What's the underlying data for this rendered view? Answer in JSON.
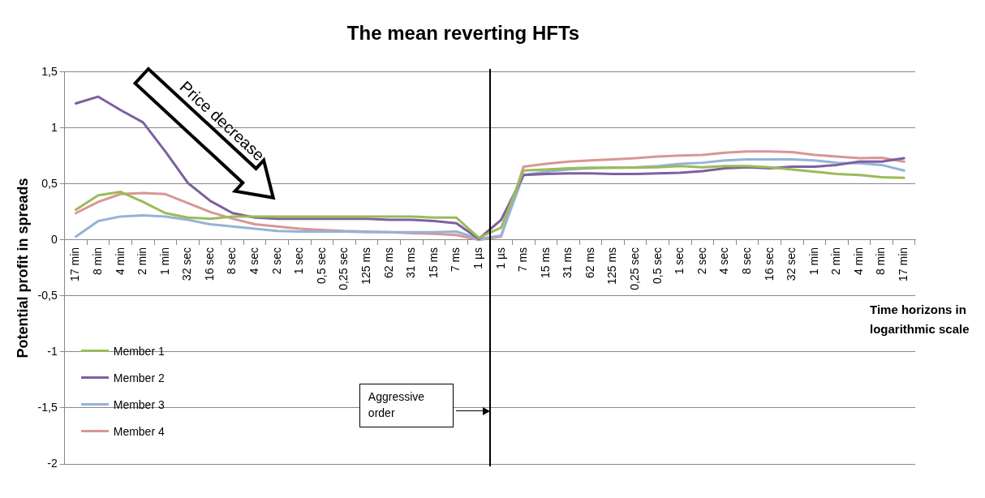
{
  "chart_data": {
    "type": "line",
    "title": "The mean reverting HFTs",
    "ylabel": "Potential profit in spreads",
    "xlabel": "Time horizons in logarithmic scale",
    "categories": [
      "17 min",
      "8 min",
      "4 min",
      "2 min",
      "1 min",
      "32 sec",
      "16 sec",
      "8 sec",
      "4 sec",
      "2 sec",
      "1 sec",
      "0,5 sec",
      "0,25 sec",
      "125 ms",
      "62 ms",
      "31 ms",
      "15 ms",
      "7 ms",
      "1 µs",
      "1 µs",
      "7 ms",
      "15 ms",
      "31 ms",
      "62 ms",
      "125 ms",
      "0,25 sec",
      "0,5 sec",
      "1 sec",
      "2 sec",
      "4 sec",
      "8 sec",
      "16 sec",
      "32 sec",
      "1 min",
      "2 min",
      "4 min",
      "8 min",
      "17 min"
    ],
    "series": [
      {
        "name": "Member 1",
        "color": "#9bbb59",
        "values": [
          0.27,
          0.4,
          0.43,
          0.34,
          0.24,
          0.2,
          0.19,
          0.21,
          0.21,
          0.21,
          0.21,
          0.21,
          0.21,
          0.21,
          0.21,
          0.21,
          0.2,
          0.2,
          0.02,
          0.11,
          0.62,
          0.63,
          0.64,
          0.645,
          0.645,
          0.645,
          0.65,
          0.66,
          0.65,
          0.66,
          0.66,
          0.65,
          0.63,
          0.61,
          0.59,
          0.58,
          0.56,
          0.555
        ]
      },
      {
        "name": "Member 2",
        "color": "#7d60a0",
        "values": [
          1.22,
          1.28,
          1.16,
          1.05,
          0.79,
          0.51,
          0.35,
          0.24,
          0.2,
          0.19,
          0.19,
          0.19,
          0.19,
          0.19,
          0.18,
          0.18,
          0.17,
          0.15,
          0.01,
          0.18,
          0.58,
          0.59,
          0.595,
          0.595,
          0.59,
          0.59,
          0.595,
          0.6,
          0.615,
          0.64,
          0.65,
          0.64,
          0.655,
          0.655,
          0.67,
          0.7,
          0.7,
          0.73
        ]
      },
      {
        "name": "Member 3",
        "color": "#95b3d7",
        "values": [
          0.03,
          0.17,
          0.21,
          0.22,
          0.21,
          0.18,
          0.14,
          0.12,
          0.1,
          0.08,
          0.075,
          0.075,
          0.075,
          0.07,
          0.07,
          0.07,
          0.07,
          0.075,
          0.01,
          0.04,
          0.58,
          0.61,
          0.63,
          0.64,
          0.645,
          0.65,
          0.66,
          0.68,
          0.69,
          0.71,
          0.72,
          0.72,
          0.72,
          0.71,
          0.69,
          0.685,
          0.67,
          0.62
        ]
      },
      {
        "name": "Member 4",
        "color": "#d99694",
        "values": [
          0.24,
          0.34,
          0.41,
          0.42,
          0.41,
          0.33,
          0.25,
          0.19,
          0.14,
          0.12,
          0.1,
          0.09,
          0.08,
          0.075,
          0.07,
          0.06,
          0.055,
          0.045,
          0.0,
          0.03,
          0.655,
          0.68,
          0.7,
          0.71,
          0.72,
          0.73,
          0.745,
          0.755,
          0.76,
          0.78,
          0.79,
          0.79,
          0.785,
          0.76,
          0.745,
          0.73,
          0.735,
          0.7
        ]
      }
    ],
    "ylim": [
      -2,
      1.5
    ],
    "yticks": [
      {
        "value": -2,
        "label": "-2"
      },
      {
        "value": -1.5,
        "label": "-1,5"
      },
      {
        "value": -1,
        "label": "-1"
      },
      {
        "value": -0.5,
        "label": "-0,5"
      },
      {
        "value": 0,
        "label": "0"
      },
      {
        "value": 0.5,
        "label": "0,5"
      },
      {
        "value": 1,
        "label": "1"
      },
      {
        "value": 1.5,
        "label": "1,5"
      }
    ],
    "grid": "y",
    "legend": "bottom left",
    "marker": "none",
    "line_style": "solid",
    "annotations": [
      "Price decrease",
      "Aggressive order"
    ]
  }
}
